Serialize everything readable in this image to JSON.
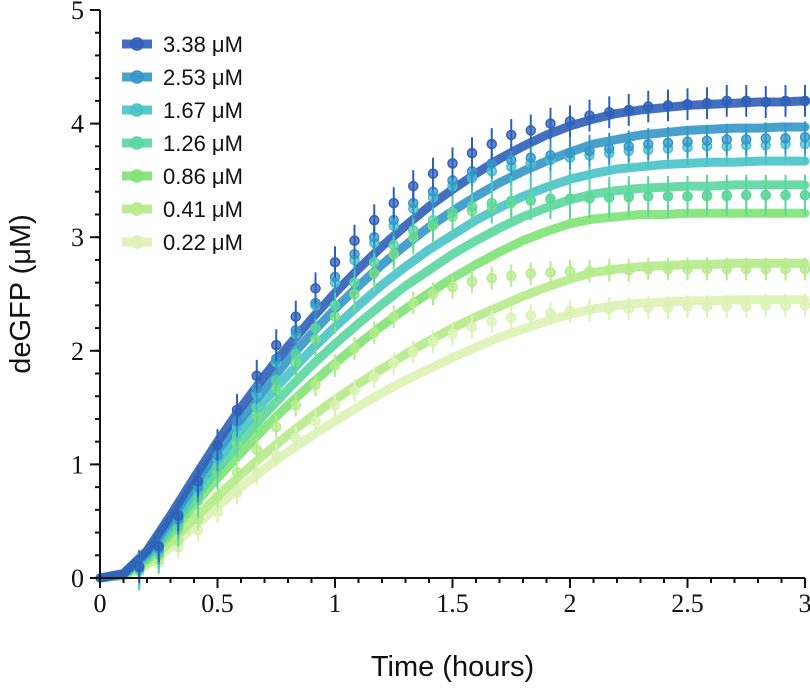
{
  "chart_data": {
    "type": "line",
    "xlabel": "Time (hours)",
    "ylabel": "deGFP (μM)",
    "xlim": [
      0,
      3
    ],
    "ylim": [
      0,
      5
    ],
    "x_ticks": [
      "0",
      "0.5",
      "1",
      "1.5",
      "2",
      "2.5",
      "3"
    ],
    "y_ticks": [
      "0",
      "1",
      "2",
      "3",
      "4",
      "5"
    ],
    "grid": false,
    "legend_position": "top-left",
    "markers_x": [
      0.167,
      0.25,
      0.333,
      0.417,
      0.5,
      0.583,
      0.667,
      0.75,
      0.833,
      0.917,
      1.0,
      1.083,
      1.167,
      1.25,
      1.333,
      1.417,
      1.5,
      1.583,
      1.667,
      1.75,
      1.833,
      1.917,
      2.0,
      2.083,
      2.167,
      2.25,
      2.333,
      2.417,
      2.5,
      2.583,
      2.667,
      2.75,
      2.833,
      2.917,
      3.0
    ],
    "series": [
      {
        "name": "3.38 μM",
        "color": "#2f5fb8",
        "markers_y": [
          0.1,
          0.28,
          0.55,
          0.85,
          1.17,
          1.48,
          1.78,
          2.05,
          2.3,
          2.55,
          2.78,
          2.97,
          3.15,
          3.3,
          3.45,
          3.56,
          3.65,
          3.74,
          3.82,
          3.9,
          3.94,
          4.0,
          4.02,
          4.07,
          4.1,
          4.12,
          4.15,
          4.16,
          4.17,
          4.18,
          4.2,
          4.2,
          4.19,
          4.2,
          4.2
        ],
        "error": 0.14,
        "fit_y": [
          0.0,
          0.04,
          0.24,
          0.55,
          0.88,
          1.2,
          1.5,
          1.78,
          2.04,
          2.28,
          2.51,
          2.72,
          2.92,
          3.1,
          3.27,
          3.42,
          3.56,
          3.69,
          3.8,
          3.9,
          3.98,
          4.04,
          4.09,
          4.12,
          4.14,
          4.16,
          4.17,
          4.18,
          4.19,
          4.19,
          4.2
        ]
      },
      {
        "name": "2.53 μM",
        "color": "#3496c8",
        "markers_y": [
          0.09,
          0.26,
          0.52,
          0.8,
          1.08,
          1.38,
          1.67,
          1.93,
          2.18,
          2.42,
          2.65,
          2.85,
          3.0,
          3.15,
          3.3,
          3.4,
          3.5,
          3.58,
          3.65,
          3.68,
          3.7,
          3.72,
          3.74,
          3.76,
          3.78,
          3.8,
          3.82,
          3.83,
          3.84,
          3.85,
          3.86,
          3.86,
          3.87,
          3.87,
          3.88
        ],
        "error": 0.14,
        "fit_y": [
          0.0,
          0.035,
          0.22,
          0.51,
          0.82,
          1.12,
          1.4,
          1.67,
          1.92,
          2.15,
          2.37,
          2.57,
          2.76,
          2.93,
          3.09,
          3.23,
          3.36,
          3.48,
          3.58,
          3.67,
          3.75,
          3.82,
          3.86,
          3.9,
          3.92,
          3.94,
          3.95,
          3.96,
          3.96,
          3.97,
          3.97
        ]
      },
      {
        "name": "1.67 μM",
        "color": "#48c3c8",
        "markers_y": [
          0.08,
          0.24,
          0.5,
          0.77,
          1.05,
          1.33,
          1.62,
          1.9,
          2.15,
          2.4,
          2.6,
          2.8,
          2.95,
          3.1,
          3.25,
          3.35,
          3.45,
          3.52,
          3.58,
          3.62,
          3.65,
          3.68,
          3.7,
          3.72,
          3.74,
          3.76,
          3.77,
          3.78,
          3.79,
          3.8,
          3.8,
          3.81,
          3.81,
          3.82,
          3.82
        ],
        "error": 0.16,
        "fit_y": [
          0.0,
          0.03,
          0.2,
          0.47,
          0.76,
          1.04,
          1.31,
          1.56,
          1.79,
          2.01,
          2.21,
          2.4,
          2.58,
          2.74,
          2.89,
          3.02,
          3.15,
          3.26,
          3.36,
          3.44,
          3.51,
          3.56,
          3.6,
          3.62,
          3.64,
          3.65,
          3.66,
          3.66,
          3.67,
          3.67,
          3.67
        ]
      },
      {
        "name": "1.26 μM",
        "color": "#5bd6a0",
        "markers_y": [
          0.07,
          0.22,
          0.46,
          0.72,
          0.98,
          1.25,
          1.5,
          1.74,
          1.97,
          2.2,
          2.4,
          2.6,
          2.78,
          2.93,
          3.06,
          3.15,
          3.22,
          3.27,
          3.3,
          3.32,
          3.33,
          3.34,
          3.34,
          3.35,
          3.35,
          3.36,
          3.36,
          3.36,
          3.36,
          3.37,
          3.37,
          3.37,
          3.37,
          3.37,
          3.37
        ],
        "error": 0.18,
        "fit_y": [
          0.0,
          0.028,
          0.18,
          0.43,
          0.7,
          0.96,
          1.21,
          1.44,
          1.66,
          1.87,
          2.06,
          2.24,
          2.41,
          2.57,
          2.71,
          2.85,
          2.97,
          3.08,
          3.18,
          3.26,
          3.33,
          3.38,
          3.41,
          3.43,
          3.44,
          3.45,
          3.45,
          3.46,
          3.46,
          3.46,
          3.46
        ]
      },
      {
        "name": "0.86 μM",
        "color": "#7fe276",
        "markers_y": [
          0.07,
          0.2,
          0.43,
          0.68,
          0.93,
          1.18,
          1.43,
          1.67,
          1.9,
          2.1,
          2.3,
          2.5,
          2.68,
          2.85,
          3.0,
          3.1,
          3.18,
          3.23,
          3.27,
          3.3,
          3.32,
          3.33,
          3.34,
          3.34,
          3.35,
          3.35,
          3.36,
          3.36,
          3.36,
          3.36,
          3.36,
          3.37,
          3.37,
          3.37,
          3.37
        ],
        "error": 0.15,
        "fit_y": [
          0.0,
          0.025,
          0.16,
          0.39,
          0.64,
          0.88,
          1.1,
          1.32,
          1.52,
          1.71,
          1.89,
          2.06,
          2.22,
          2.37,
          2.51,
          2.64,
          2.76,
          2.87,
          2.97,
          3.05,
          3.12,
          3.16,
          3.18,
          3.2,
          3.2,
          3.21,
          3.21,
          3.21,
          3.21,
          3.21,
          3.21
        ]
      },
      {
        "name": "0.41 μM",
        "color": "#b5eb8a",
        "markers_y": [
          0.06,
          0.16,
          0.33,
          0.52,
          0.72,
          0.93,
          1.13,
          1.33,
          1.52,
          1.7,
          1.87,
          2.02,
          2.16,
          2.3,
          2.42,
          2.5,
          2.56,
          2.61,
          2.64,
          2.66,
          2.68,
          2.69,
          2.7,
          2.7,
          2.71,
          2.71,
          2.72,
          2.72,
          2.72,
          2.72,
          2.72,
          2.72,
          2.72,
          2.72,
          2.72
        ],
        "error": 0.1,
        "fit_y": [
          0.0,
          0.02,
          0.13,
          0.32,
          0.52,
          0.72,
          0.91,
          1.09,
          1.26,
          1.42,
          1.57,
          1.71,
          1.84,
          1.97,
          2.09,
          2.2,
          2.3,
          2.39,
          2.48,
          2.56,
          2.63,
          2.69,
          2.72,
          2.74,
          2.75,
          2.76,
          2.76,
          2.77,
          2.77,
          2.77,
          2.77
        ]
      },
      {
        "name": "0.22 μM",
        "color": "#dbf2b4",
        "markers_y": [
          0.05,
          0.13,
          0.27,
          0.42,
          0.58,
          0.75,
          0.92,
          1.08,
          1.23,
          1.38,
          1.52,
          1.65,
          1.77,
          1.89,
          1.99,
          2.08,
          2.15,
          2.21,
          2.26,
          2.29,
          2.31,
          2.33,
          2.35,
          2.36,
          2.37,
          2.37,
          2.38,
          2.38,
          2.39,
          2.39,
          2.39,
          2.39,
          2.4,
          2.4,
          2.4
        ],
        "error": 0.1,
        "fit_y": [
          0.0,
          0.018,
          0.11,
          0.27,
          0.45,
          0.63,
          0.8,
          0.96,
          1.11,
          1.25,
          1.38,
          1.51,
          1.63,
          1.74,
          1.84,
          1.94,
          2.03,
          2.12,
          2.19,
          2.26,
          2.32,
          2.37,
          2.4,
          2.42,
          2.43,
          2.44,
          2.44,
          2.45,
          2.45,
          2.45,
          2.45
        ]
      }
    ],
    "fit_x": [
      0.0,
      0.1,
      0.2,
      0.3,
      0.4,
      0.5,
      0.6,
      0.7,
      0.8,
      0.9,
      1.0,
      1.1,
      1.2,
      1.3,
      1.4,
      1.5,
      1.6,
      1.7,
      1.8,
      1.9,
      2.0,
      2.1,
      2.2,
      2.3,
      2.4,
      2.5,
      2.6,
      2.7,
      2.8,
      2.9,
      3.0
    ]
  }
}
